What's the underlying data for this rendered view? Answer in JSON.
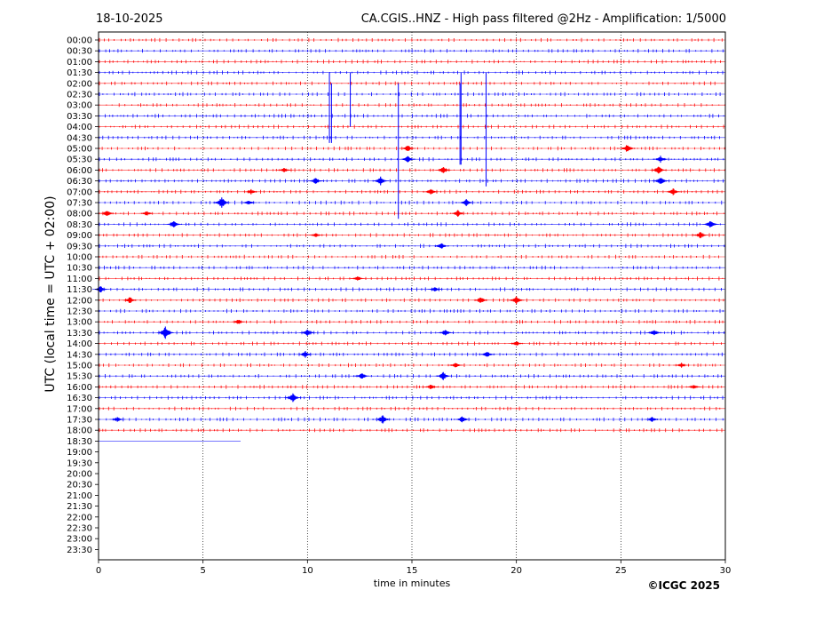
{
  "header": {
    "date": "18-10-2025",
    "title": "CA.CGIS..HNZ - High pass filtered @2Hz - Amplification: 1/5000"
  },
  "footer": {
    "copyright": "©ICGC 2025"
  },
  "chart_data": {
    "type": "line",
    "title": "CA.CGIS..HNZ - High pass filtered @2Hz - Amplification: 1/5000",
    "xlabel": "time in minutes",
    "ylabel": "UTC (local time = UTC + 02:00)",
    "xlim": [
      0,
      30
    ],
    "xticks": [
      0,
      5,
      10,
      15,
      20,
      25,
      30
    ],
    "vertical_gridlines_at": [
      5,
      10,
      15,
      20,
      25
    ],
    "row_labels": [
      "00:00",
      "00:30",
      "01:00",
      "01:30",
      "02:00",
      "02:30",
      "03:00",
      "03:30",
      "04:00",
      "04:30",
      "05:00",
      "05:30",
      "06:00",
      "06:30",
      "07:00",
      "07:30",
      "08:00",
      "08:30",
      "09:00",
      "09:30",
      "10:00",
      "10:30",
      "11:00",
      "11:30",
      "12:00",
      "12:30",
      "13:00",
      "13:30",
      "14:00",
      "14:30",
      "15:00",
      "15:30",
      "16:00",
      "16:30",
      "17:00",
      "17:30",
      "18:00",
      "18:30",
      "19:00",
      "19:30",
      "20:00",
      "20:30",
      "21:00",
      "21:30",
      "22:00",
      "22:30",
      "23:00",
      "23:30"
    ],
    "series_colors": {
      "even_rows": "#ff0000",
      "odd_rows": "#0000ff"
    },
    "last_trace_row": "18:30",
    "last_trace_end_minute": 6.8,
    "spikes": [
      {
        "row": "01:30",
        "minute": 11.05,
        "extent_rows": 6.5
      },
      {
        "row": "02:00",
        "minute": 11.15,
        "extent_rows": 5.5
      },
      {
        "row": "01:30",
        "minute": 12.05,
        "extent_rows": 5.0
      },
      {
        "row": "02:00",
        "minute": 14.35,
        "extent_rows": 12.5
      },
      {
        "row": "01:30",
        "minute": 17.35,
        "extent_rows": 8.5
      },
      {
        "row": "02:00",
        "minute": 17.3,
        "extent_rows": 7.5
      },
      {
        "row": "01:30",
        "minute": 18.55,
        "extent_rows": 10.5
      }
    ],
    "bursts": [
      {
        "row": "05:00",
        "minute": 14.8,
        "amp": 4
      },
      {
        "row": "05:00",
        "minute": 25.3,
        "amp": 5
      },
      {
        "row": "05:30",
        "minute": 14.8,
        "amp": 4
      },
      {
        "row": "05:30",
        "minute": 26.9,
        "amp": 4
      },
      {
        "row": "06:00",
        "minute": 8.9,
        "amp": 3
      },
      {
        "row": "06:00",
        "minute": 16.5,
        "amp": 4
      },
      {
        "row": "06:00",
        "minute": 26.8,
        "amp": 5
      },
      {
        "row": "06:30",
        "minute": 10.4,
        "amp": 4
      },
      {
        "row": "06:30",
        "minute": 13.5,
        "amp": 5
      },
      {
        "row": "06:30",
        "minute": 26.9,
        "amp": 5
      },
      {
        "row": "07:00",
        "minute": 7.3,
        "amp": 3
      },
      {
        "row": "07:00",
        "minute": 15.9,
        "amp": 4
      },
      {
        "row": "07:00",
        "minute": 27.5,
        "amp": 4
      },
      {
        "row": "07:30",
        "minute": 5.9,
        "amp": 7
      },
      {
        "row": "07:30",
        "minute": 7.2,
        "amp": 3
      },
      {
        "row": "07:30",
        "minute": 17.6,
        "amp": 4
      },
      {
        "row": "08:00",
        "minute": 0.4,
        "amp": 4
      },
      {
        "row": "08:00",
        "minute": 2.3,
        "amp": 3
      },
      {
        "row": "08:00",
        "minute": 17.2,
        "amp": 4
      },
      {
        "row": "08:30",
        "minute": 3.6,
        "amp": 4
      },
      {
        "row": "08:30",
        "minute": 29.3,
        "amp": 5
      },
      {
        "row": "09:00",
        "minute": 10.4,
        "amp": 3
      },
      {
        "row": "09:00",
        "minute": 28.8,
        "amp": 4
      },
      {
        "row": "09:30",
        "minute": 16.4,
        "amp": 4
      },
      {
        "row": "11:00",
        "minute": 12.4,
        "amp": 3
      },
      {
        "row": "11:30",
        "minute": 0.1,
        "amp": 4
      },
      {
        "row": "11:30",
        "minute": 16.1,
        "amp": 3
      },
      {
        "row": "12:00",
        "minute": 1.5,
        "amp": 4
      },
      {
        "row": "12:00",
        "minute": 18.3,
        "amp": 4
      },
      {
        "row": "12:00",
        "minute": 20.0,
        "amp": 5
      },
      {
        "row": "13:00",
        "minute": 6.7,
        "amp": 3
      },
      {
        "row": "13:30",
        "minute": 3.2,
        "amp": 8
      },
      {
        "row": "13:30",
        "minute": 10.0,
        "amp": 4
      },
      {
        "row": "13:30",
        "minute": 16.6,
        "amp": 4
      },
      {
        "row": "13:30",
        "minute": 26.6,
        "amp": 4
      },
      {
        "row": "14:00",
        "minute": 20.0,
        "amp": 3
      },
      {
        "row": "14:30",
        "minute": 9.9,
        "amp": 4
      },
      {
        "row": "14:30",
        "minute": 18.6,
        "amp": 4
      },
      {
        "row": "15:00",
        "minute": 17.1,
        "amp": 3
      },
      {
        "row": "15:00",
        "minute": 27.9,
        "amp": 3
      },
      {
        "row": "15:30",
        "minute": 12.6,
        "amp": 4
      },
      {
        "row": "15:30",
        "minute": 16.5,
        "amp": 5
      },
      {
        "row": "16:00",
        "minute": 15.9,
        "amp": 3
      },
      {
        "row": "16:00",
        "minute": 28.5,
        "amp": 3
      },
      {
        "row": "16:30",
        "minute": 9.3,
        "amp": 5
      },
      {
        "row": "17:30",
        "minute": 0.9,
        "amp": 3
      },
      {
        "row": "17:30",
        "minute": 13.6,
        "amp": 5
      },
      {
        "row": "17:30",
        "minute": 17.4,
        "amp": 4
      },
      {
        "row": "17:30",
        "minute": 26.5,
        "amp": 3
      }
    ]
  }
}
